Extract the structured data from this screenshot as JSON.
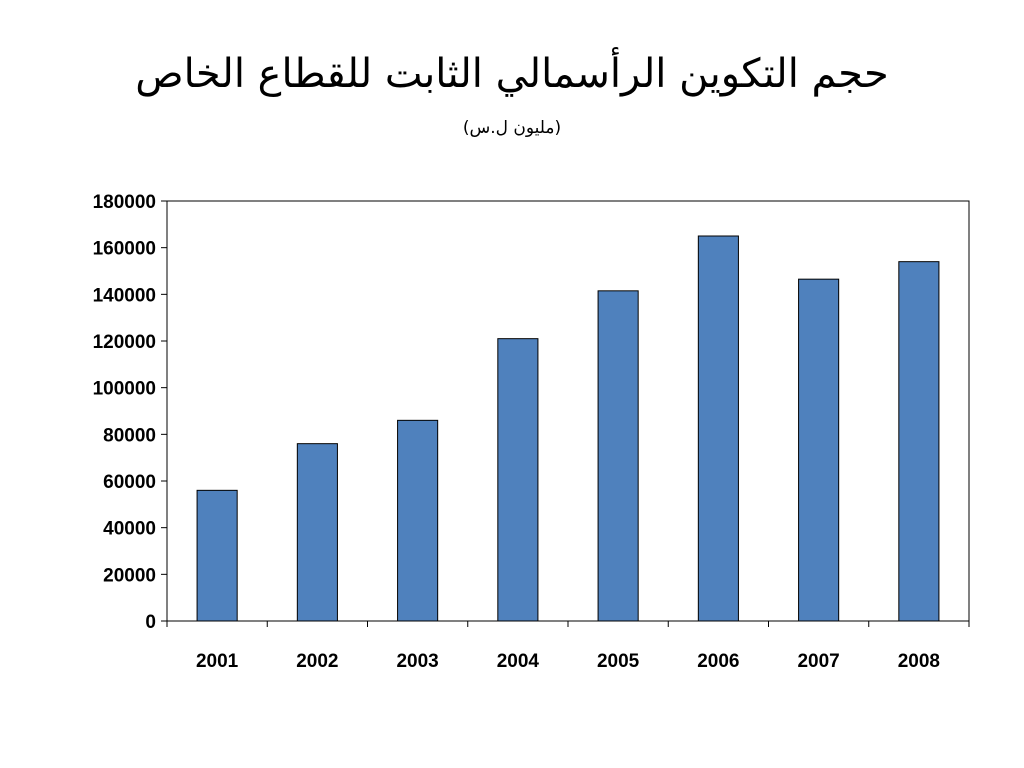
{
  "slide": {
    "title": "حجم التكوين الرأسمالي الثابت للقطاع الخاص",
    "subtitle": "(مليون ل.س)"
  },
  "chart_data": {
    "type": "bar",
    "categories": [
      "2001",
      "2002",
      "2003",
      "2004",
      "2005",
      "2006",
      "2007",
      "2008"
    ],
    "values": [
      56000,
      76000,
      86000,
      121000,
      141500,
      165000,
      146500,
      154000
    ],
    "ylim": [
      0,
      180000
    ],
    "yticks": [
      "0",
      "20000",
      "40000",
      "60000",
      "80000",
      "100000",
      "120000",
      "140000",
      "160000",
      "180000"
    ],
    "grid": false,
    "legend": "none",
    "bar_color": "#4F81BD",
    "bar_edge_color": "#000000"
  }
}
